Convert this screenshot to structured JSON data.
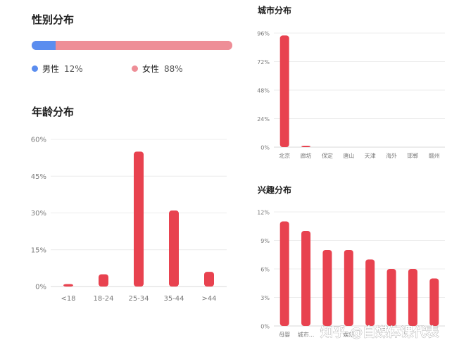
{
  "gender": {
    "title": "性别分布",
    "items": [
      {
        "label": "男性",
        "pct": "12%",
        "value": 12,
        "color": "#5b8def"
      },
      {
        "label": "女性",
        "pct": "88%",
        "value": 88,
        "color": "#ee8e97"
      }
    ]
  },
  "age": {
    "title": "年龄分布"
  },
  "city": {
    "title": "城市分布"
  },
  "interest": {
    "title": "兴趣分布"
  },
  "watermark": "知乎 @自媒体课代表",
  "chart_data": [
    {
      "type": "bar",
      "title": "年龄分布",
      "categories": [
        "<18",
        "18-24",
        "25-34",
        "35-44",
        ">44"
      ],
      "values": [
        1,
        5,
        55,
        31,
        6
      ],
      "ylim": [
        0,
        60
      ],
      "yticks": [
        0,
        15,
        30,
        45,
        60
      ],
      "yticklabels": [
        "0%",
        "15%",
        "30%",
        "45%",
        "60%"
      ],
      "unit": "%",
      "color": "#e8424f"
    },
    {
      "type": "bar",
      "title": "城市分布",
      "categories": [
        "北京",
        "廊坊",
        "保定",
        "唐山",
        "天津",
        "海外",
        "邯郸",
        "赣州"
      ],
      "values": [
        94,
        1,
        0,
        0,
        0,
        0,
        0,
        0
      ],
      "ylim": [
        0,
        96
      ],
      "yticks": [
        0,
        24,
        48,
        72,
        96
      ],
      "yticklabels": [
        "0%",
        "24%",
        "48%",
        "72%",
        "96%"
      ],
      "unit": "%",
      "color": "#e8424f"
    },
    {
      "type": "bar",
      "title": "兴趣分布",
      "categories": [
        "母婴",
        "城市...",
        "",
        "娱乐",
        "",
        "",
        "",
        ""
      ],
      "values": [
        11,
        10,
        8,
        8,
        7,
        6,
        6,
        5
      ],
      "ylim": [
        0,
        12
      ],
      "yticks": [
        0,
        3,
        6,
        9,
        12
      ],
      "yticklabels": [
        "0%",
        "3%",
        "6%",
        "9%",
        "12%"
      ],
      "unit": "%",
      "color": "#e8424f"
    }
  ]
}
